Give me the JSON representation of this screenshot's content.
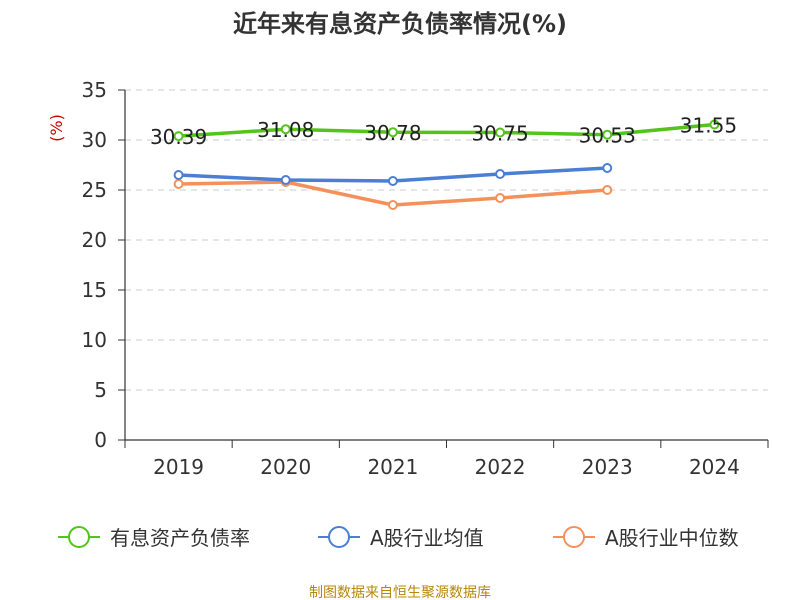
{
  "chart_data": {
    "type": "line",
    "title": "近年来有息资产负债率情况(%)",
    "ylabel": "(%)",
    "xlabel": "",
    "categories": [
      "2019",
      "2020",
      "2021",
      "2022",
      "2023",
      "2024"
    ],
    "ylim": [
      0,
      35
    ],
    "yticks": [
      "0",
      "5",
      "10",
      "15",
      "20",
      "25",
      "30",
      "35"
    ],
    "grid": true,
    "legend_position": "bottom",
    "series": [
      {
        "name": "有息资产负债率",
        "color": "#52c41a",
        "values": [
          30.39,
          31.08,
          30.78,
          30.75,
          30.53,
          31.55
        ],
        "labels": [
          "30.39",
          "31.08",
          "30.78",
          "30.75",
          "30.53",
          "31.55"
        ]
      },
      {
        "name": "A股行业均值",
        "color": "#4a7fd4",
        "values": [
          26.5,
          26.0,
          25.9,
          26.6,
          27.2,
          null
        ]
      },
      {
        "name": "A股行业中位数",
        "color": "#f5905a",
        "values": [
          25.6,
          25.8,
          23.5,
          24.2,
          25.0,
          null
        ]
      }
    ],
    "source": "制图数据来自恒生聚源数据库"
  }
}
